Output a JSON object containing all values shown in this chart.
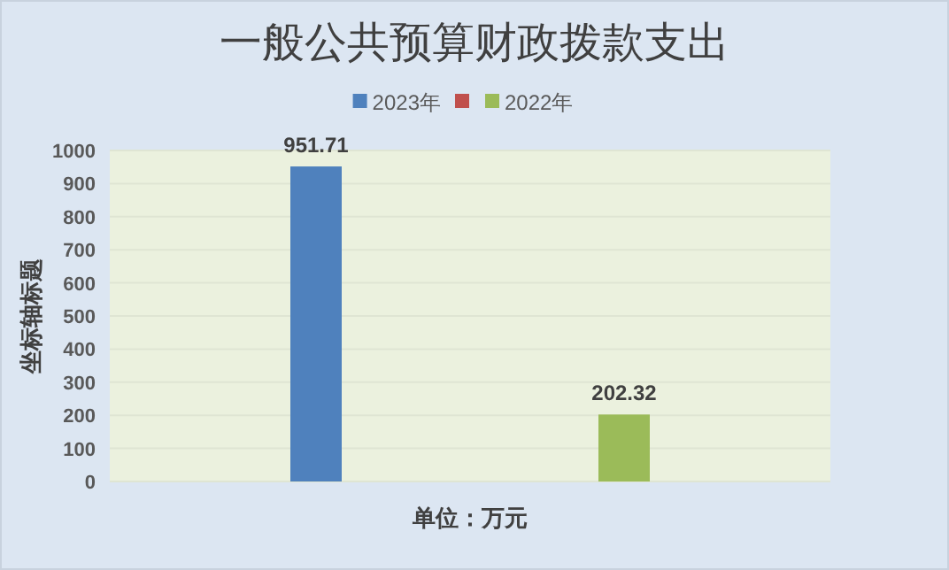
{
  "chart_data": {
    "type": "bar",
    "title": "一般公共预算财政拨款支出",
    "xlabel": "单位：万元",
    "ylabel": "坐标轴标题",
    "categories": [
      null
    ],
    "series": [
      {
        "name": "2023年",
        "color": "#4f81bd",
        "values": [
          951.71
        ]
      },
      {
        "color": "#c0504d",
        "values": [
          null
        ]
      },
      {
        "name": "2022年",
        "color": "#9bbb59",
        "values": [
          202.32
        ]
      }
    ],
    "ylim": [
      0,
      1000
    ],
    "yticks": [
      0,
      100,
      200,
      300,
      400,
      500,
      600,
      700,
      800,
      900,
      1000
    ],
    "grid": "y",
    "legend": "top",
    "data_labels": true
  }
}
